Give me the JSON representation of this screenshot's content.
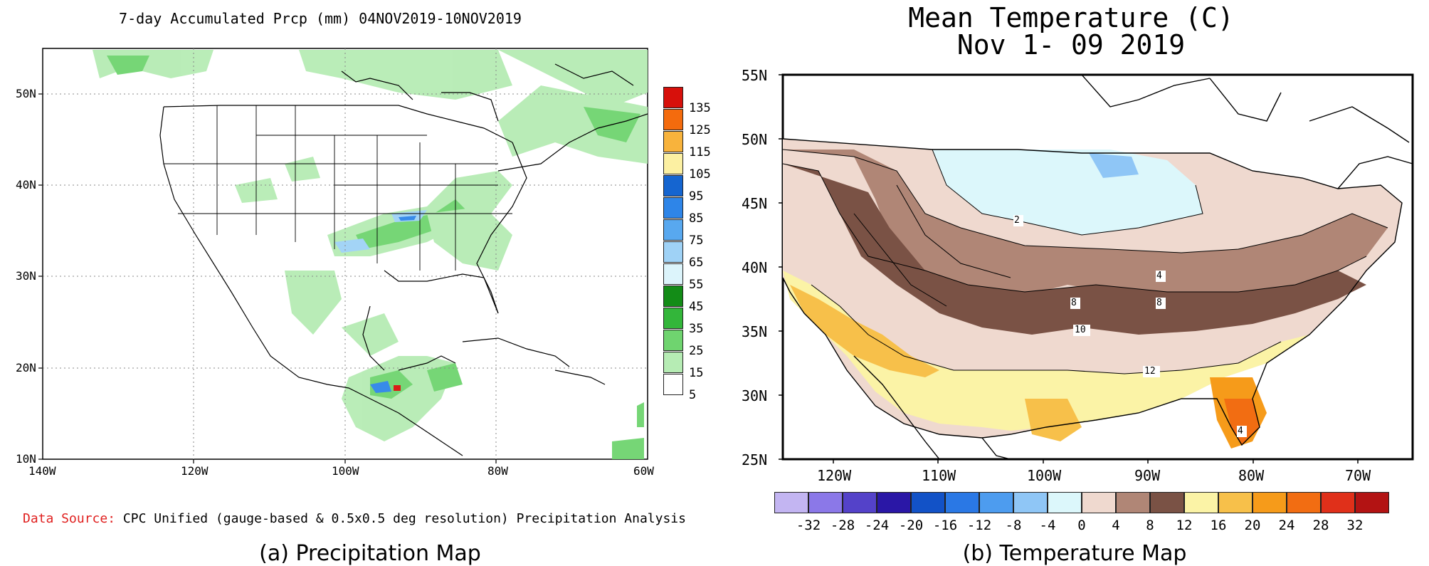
{
  "precip_map": {
    "title": "7-day Accumulated Prcp (mm) 04NOV2019-10NOV2019",
    "lat_labels": [
      "50N",
      "40N",
      "30N",
      "20N",
      "10N"
    ],
    "lon_labels": [
      "140W",
      "120W",
      "100W",
      "80W",
      "60W"
    ],
    "legend": {
      "labels": [
        "135",
        "125",
        "115",
        "105",
        "95",
        "85",
        "75",
        "65",
        "55",
        "45",
        "35",
        "25",
        "15",
        "5"
      ],
      "colors": [
        "#d7100b",
        "#f46b0d",
        "#f8b33c",
        "#fcf0a2",
        "#1565d0",
        "#2e85e8",
        "#58a8ef",
        "#9fd2f6",
        "#dcf4fb",
        "#138c17",
        "#33b63a",
        "#6fd46f",
        "#b6ecb4",
        "#ffffff"
      ]
    },
    "source_prefix": "Data Source:",
    "source_text": "CPC Unified (gauge-based & 0.5x0.5 deg resolution) Precipitation Analysis",
    "source_prefix_color": "#e0201f"
  },
  "temp_map": {
    "title_line1": "Mean Temperature (C)",
    "title_line2": "Nov 1- 09 2019",
    "lat_labels": [
      "55N",
      "50N",
      "45N",
      "40N",
      "35N",
      "30N",
      "25N"
    ],
    "lon_labels": [
      "120W",
      "110W",
      "100W",
      "90W",
      "80W",
      "70W"
    ],
    "contour_labels": [
      "2",
      "4",
      "8",
      "8",
      "10",
      "12",
      "4"
    ],
    "colorbar": {
      "labels": [
        "-32",
        "-28",
        "-24",
        "-20",
        "-16",
        "-12",
        "-8",
        "-4",
        "0",
        "4",
        "8",
        "12",
        "16",
        "20",
        "24",
        "28",
        "32"
      ],
      "colors": [
        "#c3b5f2",
        "#8b78e8",
        "#5442c9",
        "#2a17a6",
        "#1252c7",
        "#2a78e5",
        "#4d9cef",
        "#8fc6f6",
        "#dcf7fb",
        "#efd9cf",
        "#b08676",
        "#7a5245",
        "#fbf3a6",
        "#f7c04a",
        "#f69b1a",
        "#f26d12",
        "#e0301a",
        "#b31313"
      ]
    }
  },
  "captions": {
    "a": "(a) Precipitation Map",
    "b": "(b) Temperature Map"
  }
}
